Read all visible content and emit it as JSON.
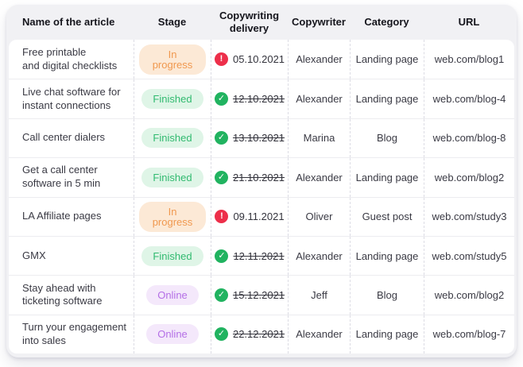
{
  "table": {
    "headers": [
      "Name of the article",
      "Stage",
      "Copywriting delivery",
      "Copywriter",
      "Category",
      "URL"
    ],
    "rows": [
      {
        "name": "Free printable\nand digital checklists",
        "stage": {
          "label": "In progress",
          "variant": "in-progress"
        },
        "delivery": {
          "date": "05.10.2021",
          "status": "overdue",
          "struck": false
        },
        "copywriter": "Alexander",
        "category": "Landing page",
        "url": "web.com/blog1"
      },
      {
        "name": "Live chat software for\ninstant connections",
        "stage": {
          "label": "Finished",
          "variant": "finished"
        },
        "delivery": {
          "date": "12.10.2021",
          "status": "done",
          "struck": true
        },
        "copywriter": "Alexander",
        "category": "Landing page",
        "url": "web.com/blog-4"
      },
      {
        "name": "Call center dialers",
        "stage": {
          "label": "Finished",
          "variant": "finished"
        },
        "delivery": {
          "date": "13.10.2021",
          "status": "done",
          "struck": true
        },
        "copywriter": "Marina",
        "category": "Blog",
        "url": "web.com/blog-8"
      },
      {
        "name": "Get a call center\nsoftware in 5 min",
        "stage": {
          "label": "Finished",
          "variant": "finished"
        },
        "delivery": {
          "date": "21.10.2021",
          "status": "done",
          "struck": true
        },
        "copywriter": "Alexander",
        "category": "Landing page",
        "url": "web.com/blog2"
      },
      {
        "name": "LA Affiliate pages",
        "stage": {
          "label": "In progress",
          "variant": "in-progress"
        },
        "delivery": {
          "date": "09.11.2021",
          "status": "overdue",
          "struck": false
        },
        "copywriter": "Oliver",
        "category": "Guest post",
        "url": "web.com/study3"
      },
      {
        "name": "GMX",
        "stage": {
          "label": "Finished",
          "variant": "finished"
        },
        "delivery": {
          "date": "12.11.2021",
          "status": "done",
          "struck": true
        },
        "copywriter": "Alexander",
        "category": "Landing page",
        "url": "web.com/study5"
      },
      {
        "name": "Stay ahead with\nticketing software",
        "stage": {
          "label": "Online",
          "variant": "online"
        },
        "delivery": {
          "date": "15.12.2021",
          "status": "done",
          "struck": true
        },
        "copywriter": "Jeff",
        "category": "Blog",
        "url": "web.com/blog2"
      },
      {
        "name": "Turn your engagement\ninto sales",
        "stage": {
          "label": "Online",
          "variant": "online"
        },
        "delivery": {
          "date": "22.12.2021",
          "status": "done",
          "struck": true
        },
        "copywriter": "Alexander",
        "category": "Landing page",
        "url": "web.com/blog-7"
      }
    ]
  },
  "icons": {
    "overdue": {
      "name": "alert-circle-icon",
      "glyph": "!",
      "color": "#ed2f4a"
    },
    "done": {
      "name": "check-circle-icon",
      "glyph": "✓",
      "color": "#21b360"
    }
  },
  "colors": {
    "card_background": "#f1f1f4",
    "body_background": "#ffffff",
    "in_progress_bg": "#fce9d6",
    "in_progress_text": "#f0984f",
    "finished_bg": "#dff5e7",
    "finished_text": "#31ba70",
    "online_bg": "#f4e8fb",
    "online_text": "#b46ee6",
    "overdue_icon": "#ed2f4a",
    "done_icon": "#21b360"
  }
}
